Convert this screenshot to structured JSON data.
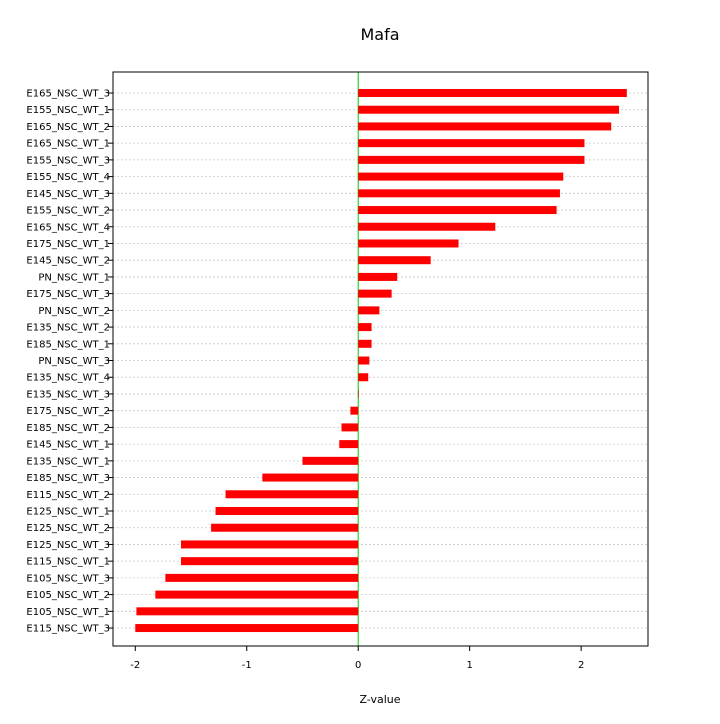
{
  "chart_data": {
    "type": "bar",
    "orientation": "horizontal",
    "title": "Mafa",
    "xlabel": "Z-value",
    "ylabel": "",
    "xlim": [
      -2.2,
      2.6
    ],
    "xticks": [
      -2,
      -1,
      0,
      1,
      2
    ],
    "xtick_labels": [
      "-2",
      "-1",
      "0",
      "1",
      "2"
    ],
    "grid": true,
    "legend": "none",
    "bar_color": "#ff0000",
    "zero_line_color": "#00cc00",
    "grid_color": "#c8c8c8",
    "categories": [
      "E165_NSC_WT_3",
      "E155_NSC_WT_1",
      "E165_NSC_WT_2",
      "E165_NSC_WT_1",
      "E155_NSC_WT_3",
      "E155_NSC_WT_4",
      "E145_NSC_WT_3",
      "E155_NSC_WT_2",
      "E165_NSC_WT_4",
      "E175_NSC_WT_1",
      "E145_NSC_WT_2",
      "PN_NSC_WT_1",
      "E175_NSC_WT_3",
      "PN_NSC_WT_2",
      "E135_NSC_WT_2",
      "E185_NSC_WT_1",
      "PN_NSC_WT_3",
      "E135_NSC_WT_4",
      "E135_NSC_WT_3",
      "E175_NSC_WT_2",
      "E185_NSC_WT_2",
      "E145_NSC_WT_1",
      "E135_NSC_WT_1",
      "E185_NSC_WT_3",
      "E115_NSC_WT_2",
      "E125_NSC_WT_1",
      "E125_NSC_WT_2",
      "E125_NSC_WT_3",
      "E115_NSC_WT_1",
      "E105_NSC_WT_3",
      "E105_NSC_WT_2",
      "E105_NSC_WT_1",
      "E115_NSC_WT_3"
    ],
    "values": [
      2.41,
      2.34,
      2.27,
      2.03,
      2.03,
      1.84,
      1.81,
      1.78,
      1.23,
      0.9,
      0.65,
      0.35,
      0.3,
      0.19,
      0.12,
      0.12,
      0.1,
      0.09,
      0.0,
      -0.07,
      -0.15,
      -0.17,
      -0.5,
      -0.86,
      -1.19,
      -1.28,
      -1.32,
      -1.59,
      -1.59,
      -1.73,
      -1.82,
      -1.99,
      -2.0
    ]
  }
}
